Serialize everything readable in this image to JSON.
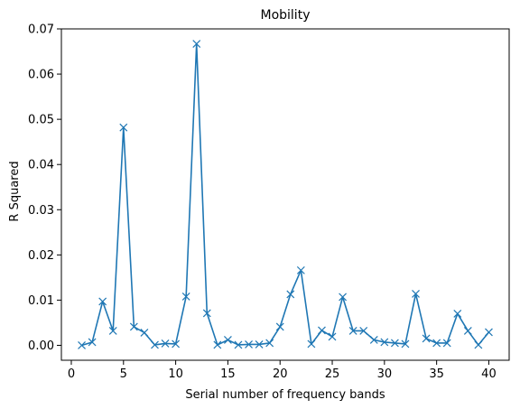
{
  "chart_data": {
    "type": "line",
    "title": "Mobility",
    "xlabel": "Serial number of frequency bands",
    "ylabel": "R Squared",
    "xlim": [
      -0.95,
      41.95
    ],
    "ylim": [
      -0.0033,
      0.07
    ],
    "xticks": [
      0,
      5,
      10,
      15,
      20,
      25,
      30,
      35,
      40
    ],
    "xtick_labels": [
      "0",
      "5",
      "10",
      "15",
      "20",
      "25",
      "30",
      "35",
      "40"
    ],
    "yticks": [
      0.0,
      0.01,
      0.02,
      0.03,
      0.04,
      0.05,
      0.06,
      0.07
    ],
    "ytick_labels": [
      "0.00",
      "0.01",
      "0.02",
      "0.03",
      "0.04",
      "0.05",
      "0.06",
      "0.07"
    ],
    "grid": false,
    "legend": "none",
    "marker": "x",
    "color": "#1f77b4",
    "x": [
      1,
      2,
      3,
      4,
      5,
      6,
      7,
      8,
      9,
      10,
      11,
      12,
      13,
      14,
      15,
      16,
      17,
      18,
      19,
      20,
      21,
      22,
      23,
      24,
      25,
      26,
      27,
      28,
      29,
      30,
      31,
      32,
      33,
      34,
      35,
      36,
      37,
      38,
      39,
      40
    ],
    "series": [
      {
        "values": [
          0.0,
          0.0007,
          0.0097,
          0.0032,
          0.0482,
          0.0041,
          0.0028,
          0.0001,
          0.0004,
          0.0003,
          0.0108,
          0.0667,
          0.0071,
          0.0001,
          0.0012,
          0.0001,
          0.0002,
          0.0002,
          0.0005,
          0.0041,
          0.0113,
          0.0166,
          0.0003,
          0.0033,
          0.0019,
          0.0107,
          0.0032,
          0.0032,
          0.0012,
          0.0007,
          0.0005,
          0.0003,
          0.0114,
          0.0015,
          0.0005,
          0.0005,
          0.007,
          0.0032,
          0.0001,
          0.0029
        ]
      }
    ]
  }
}
